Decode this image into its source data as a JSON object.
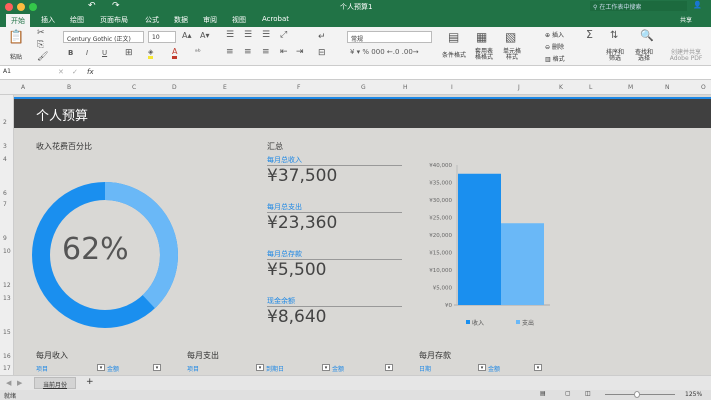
{
  "window": {
    "title": "个人预算1",
    "search_placeholder": "在工作表中搜索"
  },
  "tabs": [
    "开始",
    "插入",
    "绘图",
    "页面布局",
    "公式",
    "数据",
    "审阅",
    "视图",
    "Acrobat"
  ],
  "ribbon": {
    "paste": "粘贴",
    "font_name": "Century Gothic (正文)",
    "font_size": "10",
    "number_format": "常规",
    "conditional_format": "条件格式",
    "format_as_table": "套用表格格式",
    "cell_styles": "单元格样式",
    "insert": "插入",
    "delete": "删除",
    "format": "格式",
    "sort_filter": "排序和筛选",
    "find_select": "查找和选择",
    "adobe_pdf": "创建并共享 Adobe PDF",
    "share": "共享"
  },
  "formula_bar": {
    "name_box": "A1",
    "fx": "fx",
    "value": ""
  },
  "columns": [
    "A",
    "B",
    "C",
    "D",
    "E",
    "F",
    "G",
    "H",
    "I",
    "J",
    "K",
    "L",
    "M",
    "N",
    "O"
  ],
  "rows": [
    "2",
    "3",
    "4",
    "6",
    "7",
    "9",
    "10",
    "12",
    "13",
    "15",
    "16",
    "17"
  ],
  "sheet": {
    "title": "个人预算",
    "donut_title": "收入花费百分比",
    "percent": "62%",
    "percent_value": 62,
    "summary_title": "汇总",
    "summary": [
      {
        "label": "每月总收入",
        "value": "¥37,500"
      },
      {
        "label": "每月总支出",
        "value": "¥23,360"
      },
      {
        "label": "每月总存款",
        "value": "¥5,500"
      },
      {
        "label": "现金余额",
        "value": "¥8,640"
      }
    ],
    "tables": [
      {
        "title": "每月收入",
        "headers": [
          "项目",
          "金额"
        ]
      },
      {
        "title": "每月支出",
        "headers": [
          "项目",
          "到期日",
          "金额"
        ]
      },
      {
        "title": "每月存款",
        "headers": [
          "日期",
          "金额"
        ]
      }
    ]
  },
  "chart_data": {
    "type": "bar",
    "categories": [
      "收入",
      "支出"
    ],
    "values": [
      37500,
      23360
    ],
    "colors": [
      "#1a8fef",
      "#6ab8f7"
    ],
    "ylim": [
      0,
      40000
    ],
    "yticks": [
      "¥0",
      "¥5,000",
      "¥10,000",
      "¥15,000",
      "¥20,000",
      "¥25,000",
      "¥30,000",
      "¥35,000",
      "¥40,000"
    ],
    "legend": [
      "收入",
      "支出"
    ],
    "legend_position": "bottom"
  },
  "donut_colors": {
    "income_spent": "#1a8fef",
    "remaining": "#6ab8f7"
  },
  "sheet_tab": "当前月份",
  "status": {
    "ready": "就绪",
    "zoom": "125%"
  }
}
